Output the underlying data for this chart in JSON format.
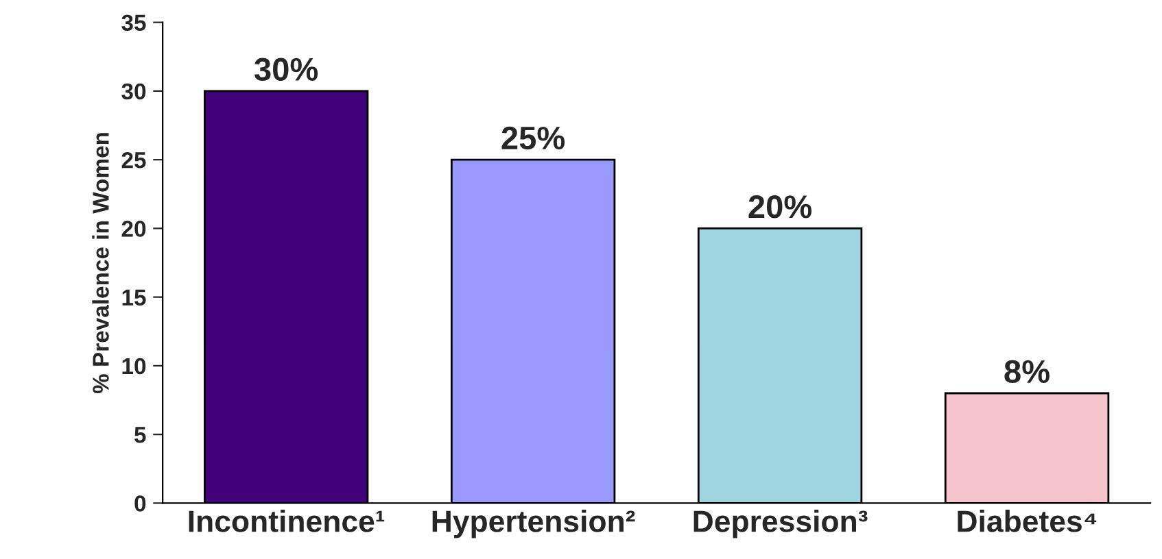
{
  "chart_data": {
    "type": "bar",
    "ylabel": "% Prevalence in Women",
    "categories": [
      "Incontinence¹",
      "Hypertension²",
      "Depression³",
      "Diabetes⁴"
    ],
    "values": [
      30,
      25,
      20,
      8
    ],
    "value_labels": [
      "30%",
      "25%",
      "20%",
      "8%"
    ],
    "colors": [
      "#400078",
      "#9999ff",
      "#a0d4e0",
      "#f5c4cc"
    ],
    "ylim": [
      0,
      35
    ],
    "yticks": [
      0,
      5,
      10,
      15,
      20,
      25,
      30,
      35
    ],
    "grid": false,
    "legend": false
  }
}
